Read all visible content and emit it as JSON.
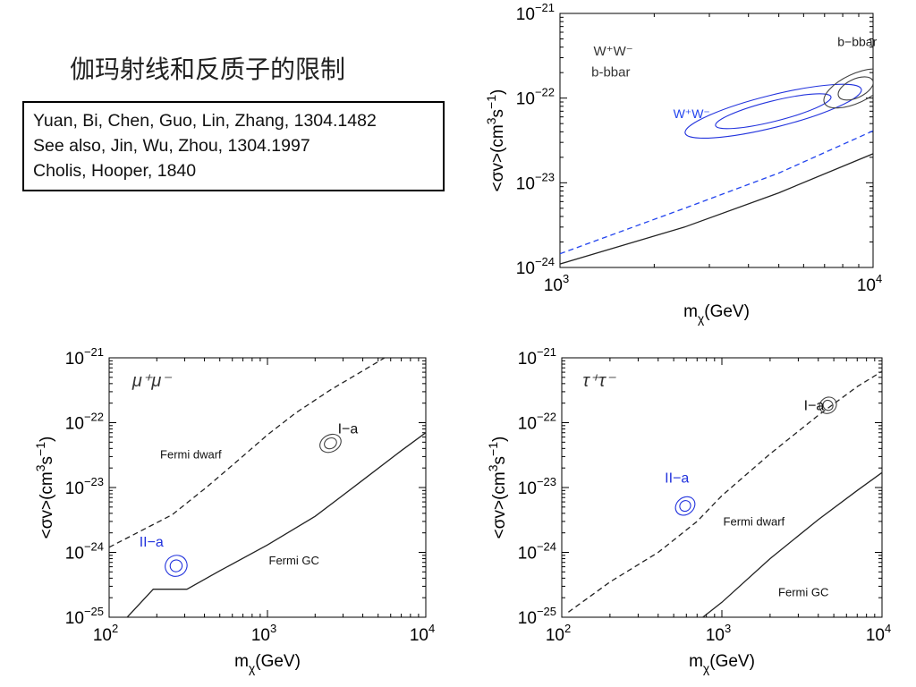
{
  "slide": {
    "title": "伽玛射线和反质子的限制",
    "references": [
      "Yuan, Bi, Chen, Guo, Lin, Zhang, 1304.1482",
      "See also, Jin, Wu, Zhou, 1304.1997",
      "Cholis, Hooper,  1840"
    ]
  },
  "chart_data": [
    {
      "type": "line",
      "xscale": "log",
      "yscale": "log",
      "xlim": [
        1000,
        10000
      ],
      "ylim": [
        1e-24,
        1e-21
      ],
      "xticks": [
        {
          "base": "10",
          "exp": "3"
        },
        {
          "base": "10",
          "exp": "4"
        }
      ],
      "yticks": [
        {
          "base": "10",
          "exp": "−21"
        },
        {
          "base": "10",
          "exp": "−22"
        },
        {
          "base": "10",
          "exp": "−23"
        },
        {
          "base": "10",
          "exp": "−24"
        }
      ],
      "xlabel": {
        "main": "m",
        "sub": "χ",
        "tail": "(GeV)"
      },
      "ylabel": {
        "head": "<σv>(cm",
        "sup1": "3",
        "mid": "s",
        "sup2": "−1",
        "tail": ")"
      },
      "annotations": [
        {
          "text": "W⁺W⁻",
          "x": 1280,
          "y": 3.2e-22,
          "color": "#333333",
          "size": 15
        },
        {
          "text": "b-bbar",
          "x": 1260,
          "y": 1.8e-22,
          "color": "#333333",
          "size": 15
        },
        {
          "text": "b−bbar",
          "x": 7700,
          "y": 4.1e-22,
          "color": "#222222",
          "size": 14
        },
        {
          "text": "W⁺W⁻",
          "x": 2300,
          "y": 5.8e-23,
          "color": "#2244ee",
          "size": 14
        }
      ],
      "series": [
        {
          "style": "solid",
          "color": "#222222",
          "x": [
            1000,
            2500,
            5000,
            10000
          ],
          "y": [
            1.1e-24,
            3e-24,
            7.6e-24,
            2.2e-23
          ]
        },
        {
          "style": "dashed",
          "color": "#2244ee",
          "x": [
            1000,
            2500,
            5000,
            10000
          ],
          "y": [
            1.45e-24,
            5e-24,
            1.3e-23,
            4.1e-23
          ]
        }
      ],
      "contours": [
        {
          "color": "#2233dd",
          "cx": 4800,
          "cy": 7e-23,
          "rx": 0.19,
          "ry": 0.12,
          "rot": -14
        },
        {
          "color": "#2233dd",
          "cx": 4800,
          "cy": 7e-23,
          "rx": 0.29,
          "ry": 0.19,
          "rot": -14
        },
        {
          "color": "#444444",
          "cx": 8800,
          "cy": 1.3e-22,
          "rx": 0.06,
          "ry": 0.11,
          "rot": -25
        },
        {
          "color": "#444444",
          "cx": 8800,
          "cy": 1.3e-22,
          "rx": 0.11,
          "ry": 0.17,
          "rot": -25
        }
      ]
    },
    {
      "type": "line",
      "xscale": "log",
      "yscale": "log",
      "xlim": [
        100,
        10000
      ],
      "ylim": [
        1e-25,
        1e-21
      ],
      "xticks": [
        {
          "base": "10",
          "exp": "2"
        },
        {
          "base": "10",
          "exp": "3"
        },
        {
          "base": "10",
          "exp": "4"
        }
      ],
      "yticks": [
        {
          "base": "10",
          "exp": "−21"
        },
        {
          "base": "10",
          "exp": "−22"
        },
        {
          "base": "10",
          "exp": "−23"
        },
        {
          "base": "10",
          "exp": "−24"
        },
        {
          "base": "10",
          "exp": "−25"
        }
      ],
      "xlabel": {
        "main": "m",
        "sub": "χ",
        "tail": "(GeV)"
      },
      "ylabel": {
        "head": "<σv>(cm",
        "sup1": "3",
        "mid": "s",
        "sup2": "−1",
        "tail": ")"
      },
      "annotations": [
        {
          "text": "μ⁺μ⁻",
          "x": 140,
          "y": 3.6e-22,
          "color": "#333333",
          "size": 20,
          "serif": true,
          "italic": true
        },
        {
          "text": "Fermi dwarf",
          "x": 210,
          "y": 2.8e-23,
          "color": "#111111",
          "size": 13
        },
        {
          "text": "Fermi GC",
          "x": 1020,
          "y": 6.5e-25,
          "color": "#111111",
          "size": 13
        },
        {
          "text": "I−a",
          "x": 2780,
          "y": 6.8e-23,
          "color": "#111111",
          "size": 16
        },
        {
          "text": "II−a",
          "x": 155,
          "y": 1.22e-24,
          "color": "#2233dd",
          "size": 16
        }
      ],
      "series": [
        {
          "style": "dashed",
          "color": "#222222",
          "x": [
            100,
            150,
            250,
            400,
            600,
            1000,
            1500,
            2500,
            4000,
            5500
          ],
          "y": [
            1.2e-24,
            2e-24,
            3.8e-24,
            9.5e-24,
            2.2e-23,
            6.5e-23,
            1.4e-22,
            3.2e-22,
            6.3e-22,
            1e-21
          ]
        },
        {
          "style": "solid",
          "color": "#222222",
          "x": [
            130,
            190,
            310,
            500,
            1000,
            2000,
            4000,
            7000,
            10000
          ],
          "y": [
            1e-25,
            2.7e-25,
            2.7e-25,
            5.2e-25,
            1.3e-24,
            3.6e-24,
            1.3e-23,
            3.7e-23,
            7e-23
          ]
        }
      ],
      "contours": [
        {
          "color": "#2233dd",
          "cx": 265,
          "cy": 6.2e-25,
          "rx": 0.038,
          "ry": 0.09,
          "rot": -28
        },
        {
          "color": "#2233dd",
          "cx": 265,
          "cy": 6.2e-25,
          "rx": 0.07,
          "ry": 0.16,
          "rot": -28
        },
        {
          "color": "#444444",
          "cx": 2500,
          "cy": 4.8e-23,
          "rx": 0.04,
          "ry": 0.08,
          "rot": -28
        },
        {
          "color": "#444444",
          "cx": 2500,
          "cy": 4.8e-23,
          "rx": 0.07,
          "ry": 0.13,
          "rot": -28
        }
      ]
    },
    {
      "type": "line",
      "xscale": "log",
      "yscale": "log",
      "xlim": [
        100,
        10000
      ],
      "ylim": [
        1e-25,
        1e-21
      ],
      "xticks": [
        {
          "base": "10",
          "exp": "2"
        },
        {
          "base": "10",
          "exp": "3"
        },
        {
          "base": "10",
          "exp": "4"
        }
      ],
      "yticks": [
        {
          "base": "10",
          "exp": "−21"
        },
        {
          "base": "10",
          "exp": "−22"
        },
        {
          "base": "10",
          "exp": "−23"
        },
        {
          "base": "10",
          "exp": "−24"
        },
        {
          "base": "10",
          "exp": "−25"
        }
      ],
      "xlabel": {
        "main": "m",
        "sub": "χ",
        "tail": "(GeV)"
      },
      "ylabel": {
        "head": "<σv>(cm",
        "sup1": "3",
        "mid": "s",
        "sup2": "−1",
        "tail": ")"
      },
      "annotations": [
        {
          "text": "τ⁺τ⁻",
          "x": 135,
          "y": 3.6e-22,
          "color": "#333333",
          "size": 20,
          "serif": true,
          "italic": true
        },
        {
          "text": "Fermi dwarf",
          "x": 1020,
          "y": 2.6e-24,
          "color": "#111111",
          "size": 13
        },
        {
          "text": "Fermi GC",
          "x": 2250,
          "y": 2.1e-25,
          "color": "#111111",
          "size": 13
        },
        {
          "text": "I−a",
          "x": 3250,
          "y": 1.55e-22,
          "color": "#111111",
          "size": 16
        },
        {
          "text": "II−a",
          "x": 440,
          "y": 1.2e-23,
          "color": "#2233dd",
          "size": 16
        }
      ],
      "series": [
        {
          "style": "dashed",
          "color": "#222222",
          "x": [
            110,
            200,
            400,
            700,
            1000,
            2000,
            4000,
            7000,
            10000
          ],
          "y": [
            1.2e-25,
            3.5e-25,
            1e-24,
            3e-24,
            7.5e-24,
            3.3e-23,
            1.3e-22,
            3.6e-22,
            6.2e-22
          ]
        },
        {
          "style": "solid",
          "color": "#222222",
          "x": [
            760,
            1000,
            2000,
            4000,
            7000,
            10000
          ],
          "y": [
            1e-25,
            1.7e-25,
            8e-25,
            3.2e-24,
            9e-24,
            1.7e-23
          ]
        }
      ],
      "contours": [
        {
          "color": "#2233dd",
          "cx": 590,
          "cy": 5.2e-24,
          "rx": 0.035,
          "ry": 0.08,
          "rot": -38
        },
        {
          "color": "#2233dd",
          "cx": 590,
          "cy": 5.2e-24,
          "rx": 0.065,
          "ry": 0.13,
          "rot": -38
        },
        {
          "color": "#444444",
          "cx": 4600,
          "cy": 1.85e-22,
          "rx": 0.03,
          "ry": 0.08,
          "rot": -38
        },
        {
          "color": "#444444",
          "cx": 4600,
          "cy": 1.85e-22,
          "rx": 0.055,
          "ry": 0.12,
          "rot": -38
        }
      ]
    }
  ]
}
